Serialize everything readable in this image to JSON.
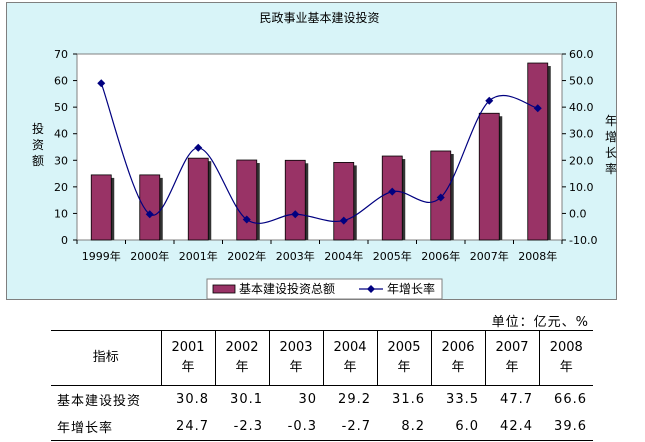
{
  "chart_data": {
    "type": "bar",
    "title": "民政事业基本建设投资",
    "categories": [
      "1999年",
      "2000年",
      "2001年",
      "2002年",
      "2003年",
      "2004年",
      "2005年",
      "2006年",
      "2007年",
      "2008年"
    ],
    "series": [
      {
        "name": "基本建设投资总额",
        "type": "bar",
        "axis": "left",
        "color": "#993366",
        "values": [
          24.5,
          24.5,
          30.8,
          30.1,
          30.0,
          29.2,
          31.6,
          33.5,
          47.7,
          66.6
        ]
      },
      {
        "name": "年增长率",
        "type": "line",
        "axis": "right",
        "color": "#000080",
        "values": [
          49.0,
          -0.3,
          24.7,
          -2.3,
          -0.3,
          -2.7,
          8.2,
          6.0,
          42.4,
          39.6
        ]
      }
    ],
    "y_left": {
      "label": "投资额",
      "ylim": [
        0,
        70
      ],
      "ticks": [
        "0",
        "10",
        "20",
        "30",
        "40",
        "50",
        "60",
        "70"
      ]
    },
    "y_right": {
      "label": "年增长率",
      "ylim": [
        -10,
        60
      ],
      "ticks": [
        "-10.0",
        "0.0",
        "10.0",
        "20.0",
        "30.0",
        "40.0",
        "50.0",
        "60.0"
      ]
    },
    "legend": {
      "placement": "bottom"
    },
    "grid": false
  },
  "unit_label": "单位：亿元、%",
  "table": {
    "header_label": "指标",
    "years": [
      {
        "year": "2001",
        "suffix": "年"
      },
      {
        "year": "2002",
        "suffix": "年"
      },
      {
        "year": "2003",
        "suffix": "年"
      },
      {
        "year": "2004",
        "suffix": "年"
      },
      {
        "year": "2005",
        "suffix": "年"
      },
      {
        "year": "2006",
        "suffix": "年"
      },
      {
        "year": "2007",
        "suffix": "年"
      },
      {
        "year": "2008",
        "suffix": "年"
      }
    ],
    "rows": [
      {
        "label": "基本建设投资",
        "values": [
          "30.8",
          "30.1",
          "30",
          "29.2",
          "31.6",
          "33.5",
          "47.7",
          "66.6"
        ]
      },
      {
        "label": "年增长率",
        "values": [
          "24.7",
          "-2.3",
          "-0.3",
          "-2.7",
          "8.2",
          "6.0",
          "42.4",
          "39.6"
        ]
      }
    ]
  }
}
